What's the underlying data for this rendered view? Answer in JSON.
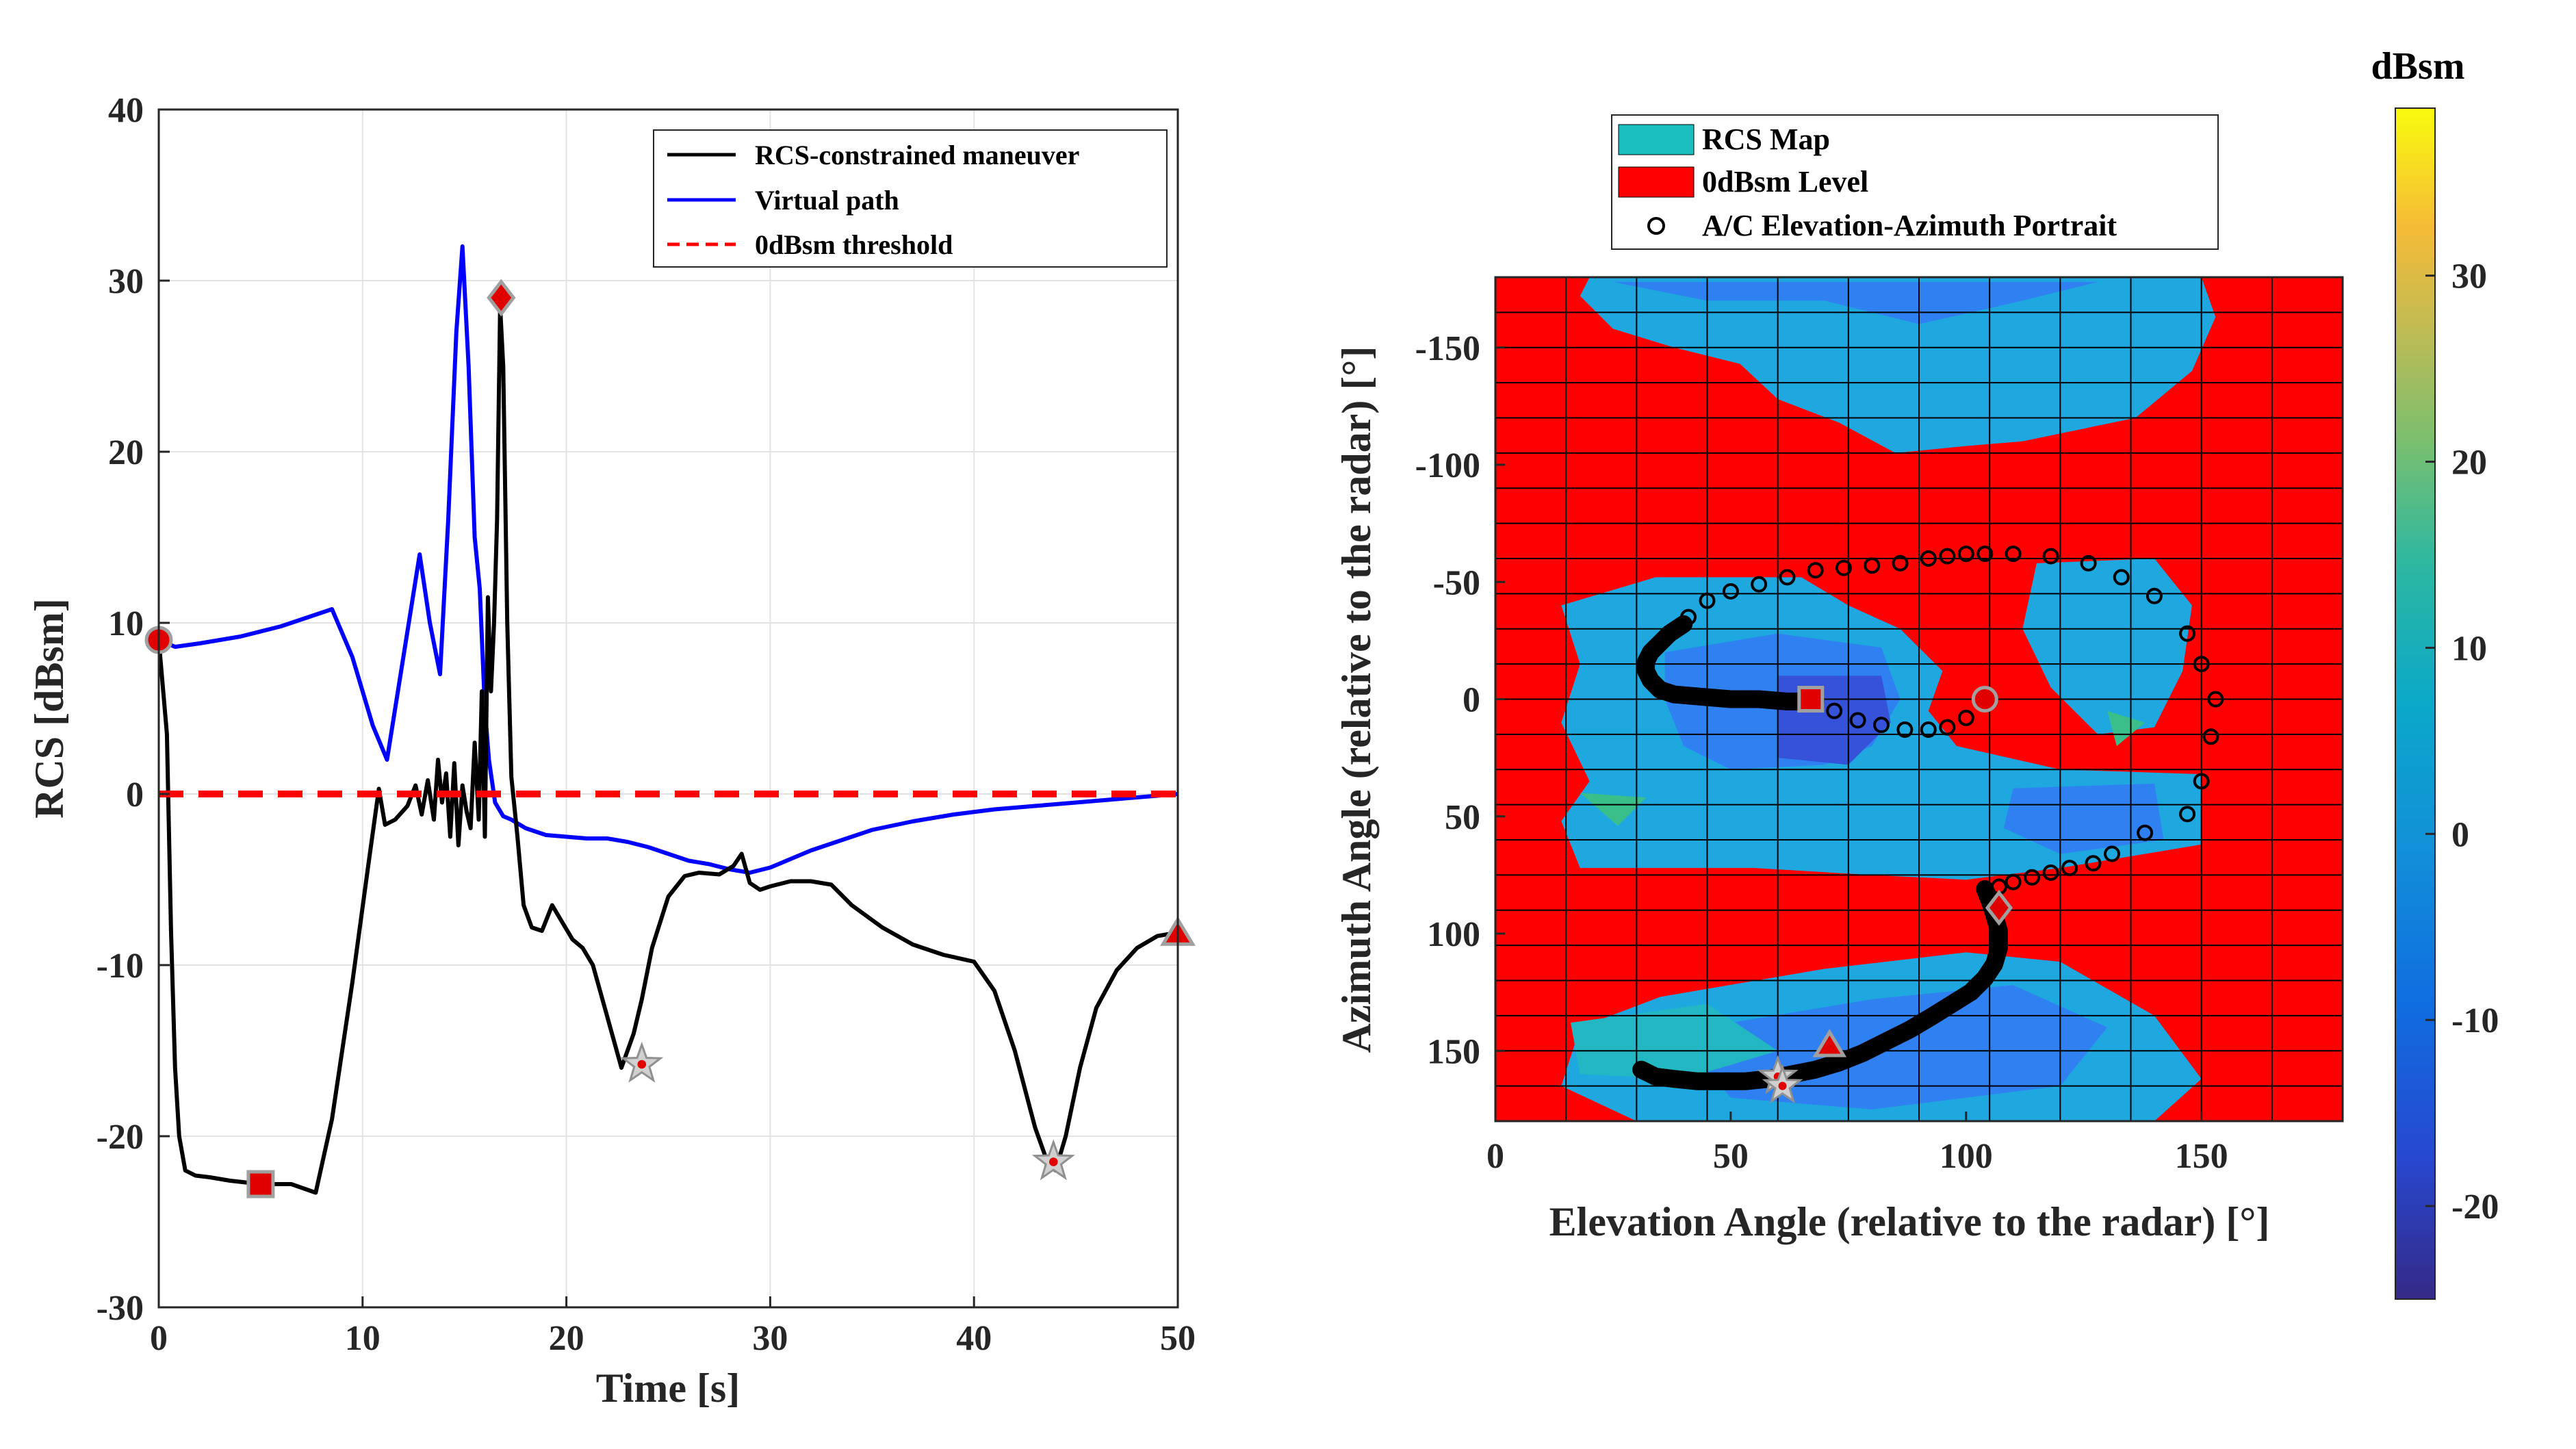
{
  "chart_data": [
    {
      "type": "line",
      "xlabel": "Time [s]",
      "ylabel": "RCS [dBsm]",
      "xlim": [
        0,
        50
      ],
      "ylim": [
        -30,
        40
      ],
      "xticks": [
        "0",
        "10",
        "20",
        "30",
        "40",
        "50"
      ],
      "yticks": [
        "-30",
        "-20",
        "-10",
        "0",
        "10",
        "20",
        "30",
        "40"
      ],
      "grid": true,
      "legend_position": "top-right",
      "series": [
        {
          "name": "RCS-constrained maneuver",
          "color": "#000000",
          "x": [
            0,
            0.4,
            0.6,
            0.8,
            1.0,
            1.3,
            1.8,
            2.5,
            3.5,
            5,
            6.5,
            7.7,
            8.5,
            9.5,
            10.3,
            10.8,
            11.1,
            11.6,
            12.2,
            12.6,
            12.9,
            13.2,
            13.5,
            13.7,
            13.9,
            14.1,
            14.3,
            14.5,
            14.7,
            14.9,
            15.1,
            15.3,
            15.5,
            15.7,
            15.85,
            16.0,
            16.15,
            16.3,
            16.45,
            16.6,
            16.75,
            16.9,
            17.1,
            17.3,
            17.6,
            17.9,
            18.3,
            18.8,
            19.3,
            19.8,
            20.3,
            20.8,
            21.3,
            22.0,
            22.7,
            23.3,
            23.7,
            24.2,
            25.0,
            25.8,
            26.5,
            27.5,
            28.2,
            28.6,
            29.0,
            29.5,
            30.0,
            31.0,
            32.0,
            33.0,
            34.0,
            35.5,
            37.0,
            38.5,
            40.0,
            41.0,
            42.0,
            43.0,
            43.6,
            44.0,
            44.5,
            45.2,
            46.0,
            47.0,
            48.0,
            49.0,
            50.0
          ],
          "y": [
            9,
            3.5,
            -8,
            -16,
            -20,
            -22,
            -22.3,
            -22.4,
            -22.6,
            -22.8,
            -22.8,
            -23.3,
            -19,
            -11,
            -4,
            0.3,
            -1.8,
            -1.5,
            -0.7,
            0.5,
            -1.2,
            0.8,
            -1.5,
            2,
            -0.5,
            1.2,
            -2.5,
            1.8,
            -3,
            0.5,
            -1,
            -2,
            3,
            -1.5,
            6,
            -2.5,
            11.5,
            6,
            10,
            16,
            28.5,
            25,
            10,
            1,
            -2.5,
            -6.5,
            -7.8,
            -8,
            -6.5,
            -7.5,
            -8.5,
            -9,
            -10,
            -13,
            -16,
            -14,
            -12,
            -9,
            -6,
            -4.8,
            -4.6,
            -4.7,
            -4.2,
            -3.5,
            -5.2,
            -5.6,
            -5.4,
            -5.1,
            -5.1,
            -5.3,
            -6.5,
            -7.8,
            -8.8,
            -9.4,
            -9.8,
            -11.5,
            -15,
            -19.5,
            -21.5,
            -22,
            -20,
            -16,
            -12.5,
            -10.3,
            -9.0,
            -8.3,
            -8.1
          ]
        },
        {
          "name": "Virtual path",
          "color": "#0000ff",
          "x": [
            0,
            0.8,
            2,
            4,
            6,
            7.5,
            8.5,
            9.5,
            10.5,
            11.2,
            11.8,
            12.4,
            12.8,
            13.3,
            13.8,
            14.2,
            14.6,
            14.9,
            15.2,
            15.5,
            15.75,
            16.0,
            16.2,
            16.5,
            16.9,
            17.3,
            18,
            19,
            20,
            21,
            22,
            23,
            24,
            25,
            26,
            27,
            28,
            29,
            30,
            31,
            32,
            33,
            34,
            35,
            37,
            39,
            41,
            43,
            45,
            47,
            49,
            50
          ],
          "y": [
            9,
            8.6,
            8.8,
            9.2,
            9.8,
            10.4,
            10.8,
            8,
            4,
            2,
            6.5,
            11,
            14,
            10,
            7,
            16,
            27,
            32,
            25,
            15,
            12,
            5,
            2,
            -0.5,
            -1.3,
            -1.5,
            -2,
            -2.4,
            -2.5,
            -2.6,
            -2.6,
            -2.8,
            -3.1,
            -3.5,
            -3.9,
            -4.1,
            -4.4,
            -4.6,
            -4.3,
            -3.8,
            -3.3,
            -2.9,
            -2.5,
            -2.1,
            -1.6,
            -1.2,
            -0.9,
            -0.7,
            -0.5,
            -0.3,
            -0.1,
            0
          ]
        },
        {
          "name": "0dBsm threshold",
          "color": "#ff0000",
          "style": "dashed",
          "x": [
            0,
            50
          ],
          "y": [
            0,
            0
          ]
        }
      ],
      "markers": [
        {
          "shape": "circle",
          "x": 0,
          "y": 9
        },
        {
          "shape": "square",
          "x": 5,
          "y": -22.8
        },
        {
          "shape": "diamond",
          "x": 16.8,
          "y": 29
        },
        {
          "shape": "star",
          "x": 23.7,
          "y": -15.8
        },
        {
          "shape": "star",
          "x": 43.9,
          "y": -21.5
        },
        {
          "shape": "triangle",
          "x": 50,
          "y": -8.2
        }
      ]
    },
    {
      "type": "heatmap",
      "xlabel": "Elevation Angle (relative to the radar) [°]",
      "ylabel": "Azimuth Angle (relative to the radar) [°]",
      "xlim": [
        0,
        180
      ],
      "ylim": [
        -180,
        180
      ],
      "xticks": [
        "0",
        "50",
        "100",
        "150"
      ],
      "yticks": [
        "-150",
        "-100",
        "-50",
        "0",
        "50",
        "100",
        "150"
      ],
      "legend_position": "top-center",
      "legend": [
        {
          "label": "RCS Map",
          "color": "#1cbfbf"
        },
        {
          "label": "0dBsm Level",
          "color": "#ff0000"
        },
        {
          "label": "A/C Elevation-Azimuth Portrait",
          "color": "#000000"
        }
      ],
      "colorbar": {
        "title": "dBsm",
        "range": [
          -25,
          39
        ],
        "ticks": [
          "-20",
          "-10",
          "0",
          "10",
          "20",
          "30"
        ]
      },
      "colors": {
        "red": "#ff0000",
        "light_blue": "#1fa8e0",
        "blue": "#2f80f0",
        "teal": "#23b7c4",
        "indigo": "#3552d8",
        "green": "#3bbf8a"
      },
      "regions": [
        {
          "fill": "light_blue",
          "points": [
            [
              20,
              -180
            ],
            [
              150,
              -180
            ],
            [
              153,
              -163
            ],
            [
              148,
              -140
            ],
            [
              136,
              -120
            ],
            [
              112,
              -110
            ],
            [
              100,
              -108
            ],
            [
              85,
              -105
            ],
            [
              73,
              -118
            ],
            [
              60,
              -128
            ],
            [
              52,
              -143
            ],
            [
              38,
              -150
            ],
            [
              25,
              -158
            ],
            [
              18,
              -172
            ]
          ]
        },
        {
          "fill": "blue",
          "points": [
            [
              25,
              -178
            ],
            [
              45,
              -170
            ],
            [
              70,
              -170
            ],
            [
              90,
              -160
            ],
            [
              112,
              -170
            ],
            [
              128,
              -178
            ]
          ]
        },
        {
          "fill": "light_blue",
          "points": [
            [
              14,
              -40
            ],
            [
              34,
              -52
            ],
            [
              65,
              -52
            ],
            [
              75,
              -40
            ],
            [
              86,
              -30
            ],
            [
              95,
              -12
            ],
            [
              92,
              5
            ],
            [
              98,
              20
            ],
            [
              120,
              30
            ],
            [
              150,
              32
            ],
            [
              150,
              62
            ],
            [
              120,
              72
            ],
            [
              100,
              77
            ],
            [
              80,
              75
            ],
            [
              55,
              72
            ],
            [
              40,
              72
            ],
            [
              18,
              72
            ],
            [
              14,
              52
            ],
            [
              20,
              35
            ],
            [
              14,
              10
            ],
            [
              18,
              -15
            ]
          ]
        },
        {
          "fill": "blue",
          "points": [
            [
              36,
              -20
            ],
            [
              60,
              -28
            ],
            [
              82,
              -22
            ],
            [
              86,
              0
            ],
            [
              80,
              20
            ],
            [
              70,
              28
            ],
            [
              50,
              30
            ],
            [
              40,
              20
            ],
            [
              36,
              0
            ]
          ]
        },
        {
          "fill": "indigo",
          "points": [
            [
              60,
              -10
            ],
            [
              82,
              -10
            ],
            [
              84,
              10
            ],
            [
              75,
              28
            ],
            [
              60,
              25
            ]
          ]
        },
        {
          "fill": "light_blue",
          "points": [
            [
              115,
              -58
            ],
            [
              140,
              -60
            ],
            [
              148,
              -40
            ],
            [
              146,
              -12
            ],
            [
              140,
              12
            ],
            [
              128,
              15
            ],
            [
              118,
              -5
            ],
            [
              112,
              -30
            ]
          ]
        },
        {
          "fill": "blue",
          "points": [
            [
              110,
              38
            ],
            [
              140,
              36
            ],
            [
              142,
              60
            ],
            [
              120,
              66
            ],
            [
              108,
              55
            ]
          ]
        },
        {
          "fill": "light_blue",
          "points": [
            [
              18,
              140
            ],
            [
              35,
              127
            ],
            [
              70,
              115
            ],
            [
              100,
              108
            ],
            [
              120,
              112
            ],
            [
              140,
              135
            ],
            [
              150,
              162
            ],
            [
              140,
              180
            ],
            [
              30,
              180
            ],
            [
              14,
              165
            ]
          ]
        },
        {
          "fill": "blue",
          "points": [
            [
              38,
              142
            ],
            [
              80,
              128
            ],
            [
              110,
              122
            ],
            [
              130,
              140
            ],
            [
              120,
              165
            ],
            [
              80,
              175
            ],
            [
              50,
              170
            ]
          ]
        },
        {
          "fill": "teal",
          "points": [
            [
              16,
              138
            ],
            [
              45,
              130
            ],
            [
              60,
              150
            ],
            [
              40,
              162
            ],
            [
              18,
              160
            ]
          ]
        },
        {
          "fill": "green",
          "points": [
            [
              18,
              40
            ],
            [
              32,
              42
            ],
            [
              26,
              54
            ]
          ]
        },
        {
          "fill": "green",
          "points": [
            [
              130,
              5
            ],
            [
              138,
              10
            ],
            [
              132,
              20
            ]
          ]
        }
      ],
      "portrait_black": [
        [
          31,
          158
        ],
        [
          34,
          161
        ],
        [
          38,
          162
        ],
        [
          43,
          163
        ],
        [
          48,
          163
        ],
        [
          53,
          163
        ],
        [
          58,
          162
        ],
        [
          63,
          160
        ],
        [
          68,
          158
        ],
        [
          73,
          155
        ],
        [
          78,
          151
        ],
        [
          83,
          146
        ],
        [
          88,
          141
        ],
        [
          93,
          135
        ],
        [
          97,
          130
        ],
        [
          101,
          125
        ],
        [
          104,
          119
        ],
        [
          106,
          113
        ],
        [
          107,
          106
        ],
        [
          107,
          99
        ],
        [
          106,
          92
        ],
        [
          105,
          86
        ],
        [
          104,
          81
        ],
        [
          68,
          1
        ],
        [
          62,
          1
        ],
        [
          56,
          0
        ],
        [
          50,
          0
        ],
        [
          44,
          -1
        ],
        [
          38,
          -2
        ],
        [
          35,
          -4
        ],
        [
          33,
          -8
        ],
        [
          32,
          -12
        ],
        [
          32,
          -16
        ],
        [
          33,
          -20
        ],
        [
          35,
          -24
        ],
        [
          37,
          -28
        ],
        [
          40,
          -32
        ]
      ],
      "portrait_open": [
        [
          41,
          -35
        ],
        [
          45,
          -42
        ],
        [
          50,
          -46
        ],
        [
          56,
          -49
        ],
        [
          62,
          -52
        ],
        [
          68,
          -55
        ],
        [
          74,
          -56
        ],
        [
          80,
          -57
        ],
        [
          86,
          -58
        ],
        [
          92,
          -60
        ],
        [
          96,
          -61
        ],
        [
          100,
          -62
        ],
        [
          104,
          -62
        ],
        [
          110,
          -62
        ],
        [
          118,
          -61
        ],
        [
          126,
          -58
        ],
        [
          133,
          -52
        ],
        [
          140,
          -44
        ],
        [
          147,
          -28
        ],
        [
          150,
          -15
        ],
        [
          153,
          0
        ],
        [
          152,
          16
        ],
        [
          150,
          35
        ],
        [
          147,
          49
        ],
        [
          138,
          57
        ],
        [
          131,
          66
        ],
        [
          127,
          70
        ],
        [
          122,
          72
        ],
        [
          118,
          74
        ],
        [
          114,
          76
        ],
        [
          110,
          78
        ],
        [
          107,
          80
        ],
        [
          72,
          5
        ],
        [
          77,
          9
        ],
        [
          82,
          11
        ],
        [
          87,
          13
        ],
        [
          92,
          13
        ],
        [
          96,
          12
        ],
        [
          100,
          8
        ]
      ],
      "markers": [
        {
          "shape": "circle",
          "x": 104,
          "y": 0
        },
        {
          "shape": "square",
          "x": 67,
          "y": 0
        },
        {
          "shape": "diamond",
          "x": 107,
          "y": 89
        },
        {
          "shape": "star",
          "x": 60,
          "y": 161
        },
        {
          "shape": "star",
          "x": 61,
          "y": 165
        },
        {
          "shape": "triangle",
          "x": 71,
          "y": 148
        }
      ]
    }
  ]
}
